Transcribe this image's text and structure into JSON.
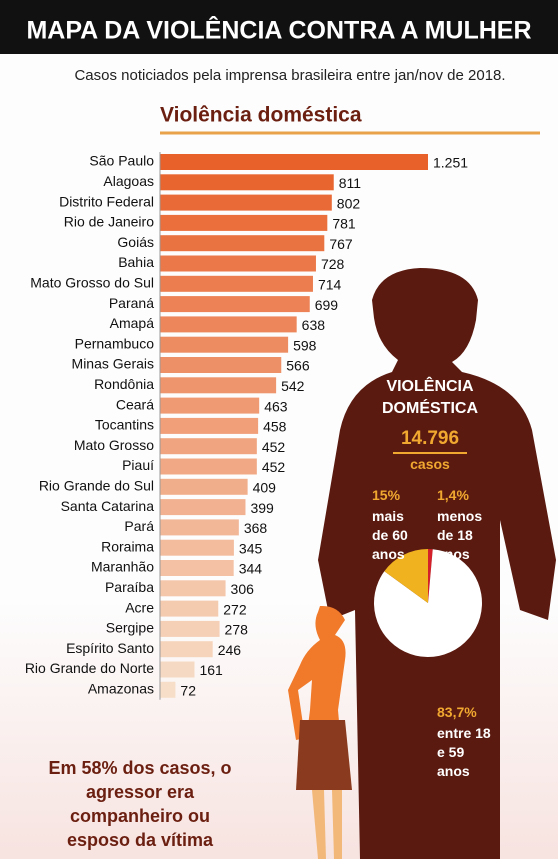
{
  "chart_data": [
    {
      "type": "hbar",
      "title": "MAPA DA VIOLÊNCIA CONTRA A MULHER",
      "subtitle": "Casos noticiados pela imprensa brasileira entre jan/nov de 2018.",
      "section_title": "Violência doméstica",
      "categories": [
        "São Paulo",
        "Alagoas",
        "Distrito Federal",
        "Rio de Janeiro",
        "Goiás",
        "Bahia",
        "Mato Grosso do Sul",
        "Paraná",
        "Amapá",
        "Pernambuco",
        "Minas Gerais",
        "Rondônia",
        "Ceará",
        "Tocantins",
        "Mato Grosso",
        "Piauí",
        "Rio Grande do Sul",
        "Santa Catarina",
        "Pará",
        "Roraima",
        "Maranhão",
        "Paraíba",
        "Acre",
        "Sergipe",
        "Espírito Santo",
        "Rio Grande do Norte",
        "Amazonas"
      ],
      "values": [
        1251,
        811,
        802,
        781,
        767,
        728,
        714,
        699,
        638,
        598,
        566,
        542,
        463,
        458,
        452,
        452,
        409,
        399,
        368,
        345,
        344,
        306,
        272,
        278,
        246,
        161,
        72
      ],
      "value_labels": [
        "1.251",
        "811",
        "802",
        "781",
        "767",
        "728",
        "714",
        "699",
        "638",
        "598",
        "566",
        "542",
        "463",
        "458",
        "452",
        "452",
        "409",
        "399",
        "368",
        "345",
        "344",
        "306",
        "272",
        "278",
        "246",
        "161",
        "72"
      ],
      "color_range": [
        "#e8602a",
        "#f7dec8"
      ],
      "annotation": "Em 58% dos casos, o agressor era companheiro ou esposo da vítima"
    },
    {
      "type": "pie",
      "title": "VIOLÊNCIA DOMÉSTICA",
      "total": "14.796",
      "unit": "casos",
      "categories": [
        "menos de 18 anos",
        "entre 18 e 59 anos",
        "mais de 60 anos"
      ],
      "values": [
        1.4,
        83.7,
        15
      ],
      "value_labels": [
        "1,4%",
        "83,7%",
        "15%"
      ],
      "colors": [
        "#d3202a",
        "#ffffff",
        "#f0b21e"
      ]
    }
  ]
}
